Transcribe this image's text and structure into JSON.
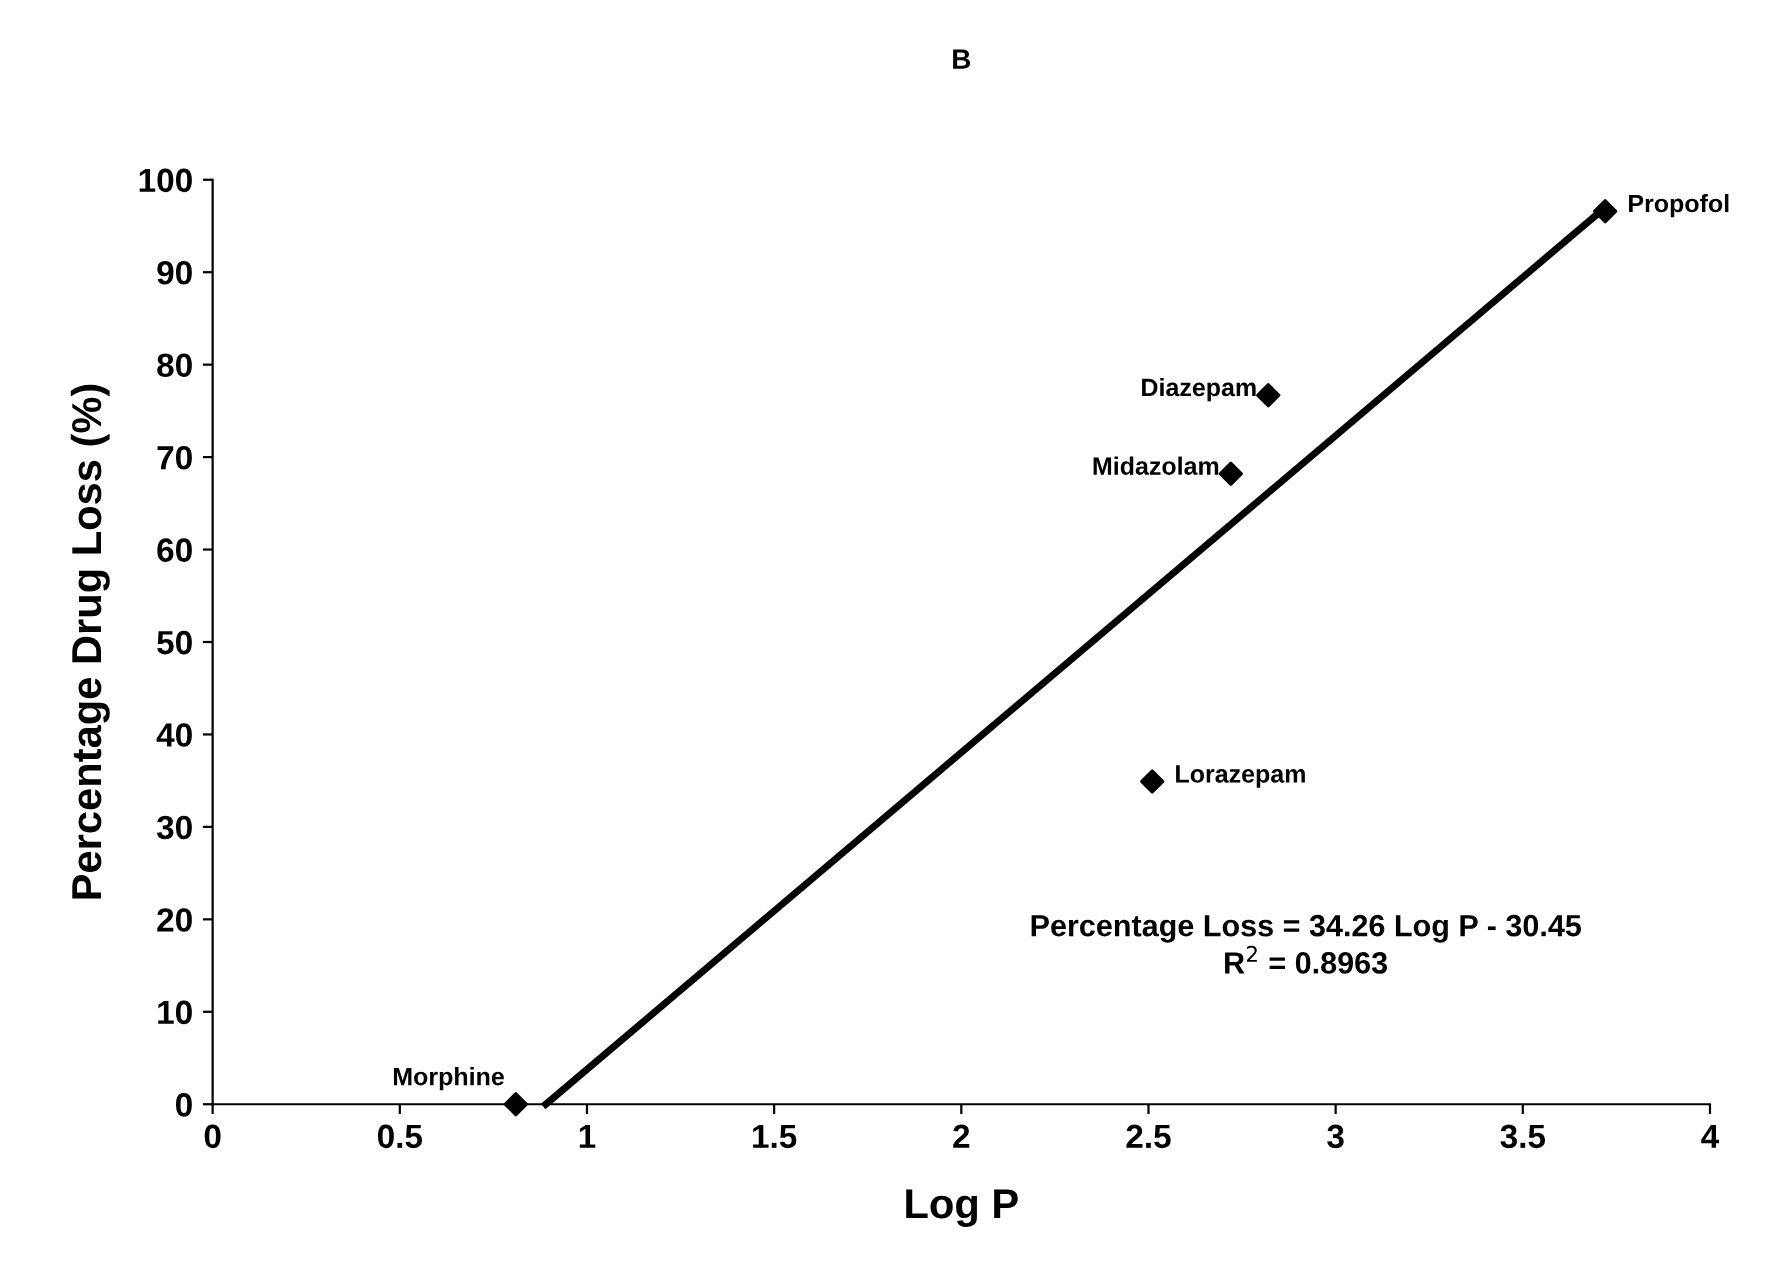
{
  "chart_data": {
    "type": "scatter",
    "title": "B",
    "xlabel": "Log P",
    "ylabel": "Percentage Drug Loss (%)",
    "series": [
      {
        "color": "#000000",
        "marker": "diamond",
        "x": [
          0.81,
          2.51,
          2.72,
          2.82,
          3.72
        ],
        "values": [
          0,
          34.9,
          68.2,
          76.7,
          96.6
        ]
      },
      {
        "type": "line",
        "marker": "none",
        "color": "#000000",
        "x": [
          0.89,
          3.72
        ],
        "values": [
          0,
          97
        ]
      }
    ],
    "grid": false,
    "legend": false,
    "xlim": [
      0,
      4
    ],
    "xticks": [
      0,
      0.5,
      1,
      1.5,
      2,
      2.5,
      3,
      3.5,
      4
    ],
    "ylim": [
      0,
      100
    ],
    "yticks": [
      0,
      10,
      20,
      30,
      40,
      50,
      60,
      70,
      80,
      90,
      100
    ],
    "annotations": [
      {
        "text": "Morphine",
        "x": 0.81,
        "y": 0
      },
      {
        "text": "Lorazepam",
        "x": 2.51,
        "y": 34.9
      },
      {
        "text": "Midazolam",
        "x": 2.72,
        "y": 68.2
      },
      {
        "text": "Diazepam",
        "x": 2.82,
        "y": 76.7
      },
      {
        "text": "Propofol",
        "x": 3.72,
        "y": 96.6
      },
      "Percentage Loss = 34.26 Log P - 30.45\nR$^{2}$ = 0.8963"
    ]
  }
}
